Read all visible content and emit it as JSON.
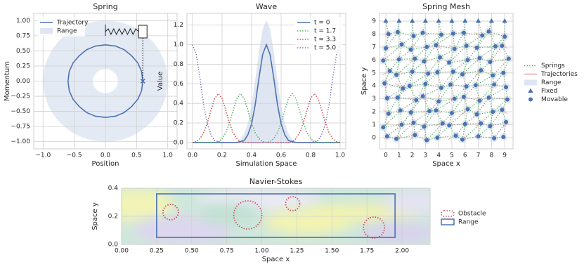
{
  "chart_data": [
    {
      "type": "line",
      "title": "Spring",
      "xlabel": "Position",
      "ylabel": "Momentum",
      "xlim": [
        -1.15,
        1.15
      ],
      "ylim": [
        -1.12,
        1.12
      ],
      "xticks": [
        {
          "value": -1,
          "label": "−1.0"
        },
        {
          "value": -0.5,
          "label": "−0.5"
        },
        {
          "value": 0,
          "label": "0.0"
        },
        {
          "value": 0.5,
          "label": "0.5"
        },
        {
          "value": 1,
          "label": "1.0"
        }
      ],
      "yticks": [
        {
          "value": -1,
          "label": "−1.00"
        },
        {
          "value": -0.75,
          "label": "−0.75"
        },
        {
          "value": -0.5,
          "label": "−0.50"
        },
        {
          "value": -0.25,
          "label": "−0.25"
        },
        {
          "value": 0,
          "label": "0.00"
        },
        {
          "value": 0.25,
          "label": "0.25"
        },
        {
          "value": 0.5,
          "label": "0.50"
        },
        {
          "value": 0.75,
          "label": "0.75"
        },
        {
          "value": 1,
          "label": "1.00"
        }
      ],
      "grid": true,
      "legend": "upper left",
      "series": [
        {
          "name": "Trajectory",
          "color": "#4c72b0",
          "x": [
            0.6,
            0.58,
            0.52,
            0.42,
            0.3,
            0.16,
            0,
            -0.16,
            -0.3,
            -0.42,
            -0.52,
            -0.58,
            -0.6,
            -0.58,
            -0.52,
            -0.42,
            -0.3,
            -0.16,
            0,
            0.16,
            0.3,
            0.42,
            0.52,
            0.58,
            0.6
          ],
          "values": [
            0,
            0.16,
            0.3,
            0.42,
            0.52,
            0.58,
            0.6,
            0.58,
            0.52,
            0.42,
            0.3,
            0.16,
            0,
            -0.16,
            -0.3,
            -0.42,
            -0.52,
            -0.58,
            -0.6,
            -0.58,
            -0.52,
            -0.42,
            -0.3,
            -0.16,
            0
          ]
        },
        {
          "name": "Range",
          "color": "#dfe6f2",
          "kind": "annulus",
          "inner": 0.2,
          "outer": 1.0
        }
      ]
    },
    {
      "type": "line",
      "title": "Wave",
      "xlabel": "Simulation Space",
      "ylabel": "Value",
      "xlim": [
        -0.038,
        1.038
      ],
      "ylim": [
        -0.065,
        1.32
      ],
      "xticks": [
        {
          "value": 0,
          "label": "0.0"
        },
        {
          "value": 0.2,
          "label": "0.2"
        },
        {
          "value": 0.4,
          "label": "0.4"
        },
        {
          "value": 0.6,
          "label": "0.6"
        },
        {
          "value": 0.8,
          "label": "0.8"
        },
        {
          "value": 1,
          "label": "1.0"
        }
      ],
      "yticks": [
        {
          "value": 0,
          "label": "0.0"
        },
        {
          "value": 0.2,
          "label": "0.2"
        },
        {
          "value": 0.4,
          "label": "0.4"
        },
        {
          "value": 0.6,
          "label": "0.6"
        },
        {
          "value": 0.8,
          "label": "0.8"
        },
        {
          "value": 1,
          "label": "1.0"
        },
        {
          "value": 1.2,
          "label": "1.2"
        }
      ],
      "grid": true,
      "legend": "upper right",
      "x": [
        0,
        0.025,
        0.05,
        0.075,
        0.1,
        0.125,
        0.15,
        0.175,
        0.2,
        0.225,
        0.25,
        0.275,
        0.3,
        0.325,
        0.35,
        0.375,
        0.4,
        0.425,
        0.45,
        0.475,
        0.5,
        0.525,
        0.55,
        0.575,
        0.6,
        0.625,
        0.65,
        0.675,
        0.7,
        0.725,
        0.75,
        0.775,
        0.8,
        0.825,
        0.85,
        0.875,
        0.9,
        0.925,
        0.95,
        0.975,
        1
      ],
      "band": {
        "color": "#dfe6f2",
        "values": [
          0,
          0,
          0,
          0,
          0,
          0,
          0,
          0,
          0,
          0,
          0,
          0,
          0.01,
          0.03,
          0.09,
          0.2,
          0.38,
          0.64,
          0.93,
          1.16,
          1.25,
          1.16,
          0.93,
          0.64,
          0.38,
          0.2,
          0.09,
          0.03,
          0.01,
          0,
          0,
          0,
          0,
          0,
          0,
          0,
          0,
          0,
          0,
          0,
          0
        ]
      },
      "series": [
        {
          "name": "t = 0",
          "color": "#4c72b0",
          "values": [
            0,
            0,
            0,
            0,
            0,
            0,
            0,
            0,
            0,
            0,
            0,
            0,
            0,
            0.01,
            0.02,
            0.08,
            0.19,
            0.39,
            0.66,
            0.9,
            1,
            0.9,
            0.66,
            0.39,
            0.19,
            0.08,
            0.02,
            0.01,
            0,
            0,
            0,
            0,
            0,
            0,
            0,
            0,
            0,
            0,
            0,
            0,
            0
          ]
        },
        {
          "name": "t = 1.7",
          "color": "#55a868",
          "dash": "dotted",
          "values": [
            0,
            0,
            0,
            0,
            0,
            0,
            0,
            0.01,
            0.04,
            0.1,
            0.2,
            0.33,
            0.45,
            0.5,
            0.45,
            0.33,
            0.2,
            0.1,
            0.04,
            0.01,
            0,
            0.01,
            0.04,
            0.1,
            0.2,
            0.33,
            0.45,
            0.5,
            0.45,
            0.33,
            0.2,
            0.1,
            0.04,
            0.01,
            0,
            0,
            0,
            0,
            0,
            0,
            0
          ]
        },
        {
          "name": "t = 3.3",
          "color": "#c44e52",
          "dash": "dotted",
          "values": [
            0,
            0.01,
            0.04,
            0.1,
            0.2,
            0.33,
            0.45,
            0.5,
            0.45,
            0.33,
            0.2,
            0.1,
            0.04,
            0.01,
            0,
            0,
            0,
            0,
            0,
            0,
            0,
            0,
            0,
            0,
            0,
            0,
            0,
            0.01,
            0.04,
            0.1,
            0.2,
            0.33,
            0.45,
            0.5,
            0.45,
            0.33,
            0.2,
            0.1,
            0.04,
            0.01,
            0
          ]
        },
        {
          "name": "t = 5.0",
          "color": "#8172b2",
          "dash": "dotted",
          "values": [
            1,
            0.9,
            0.66,
            0.39,
            0.19,
            0.08,
            0.02,
            0.01,
            0,
            0,
            0,
            0,
            0,
            0,
            0,
            0,
            0,
            0,
            0,
            0,
            0,
            0,
            0,
            0,
            0,
            0,
            0,
            0,
            0,
            0,
            0,
            0,
            0,
            0.01,
            0.02,
            0.08,
            0.19,
            0.39,
            0.66,
            0.9,
            1
          ]
        }
      ]
    },
    {
      "type": "scatter",
      "title": "Spring Mesh",
      "xlabel": "Space x",
      "ylabel": "Space y",
      "xlim": [
        -0.48,
        9.63
      ],
      "ylim": [
        -0.87,
        9.6
      ],
      "xticks": [
        0,
        1,
        2,
        3,
        4,
        5,
        6,
        7,
        8,
        9
      ],
      "yticks": [
        0,
        1,
        2,
        3,
        4,
        5,
        6,
        7,
        8,
        9
      ],
      "grid": true,
      "legend": "outside right",
      "series": [
        {
          "name": "Springs",
          "color": "#55a868",
          "kind": "springs",
          "dash": "dotted"
        },
        {
          "name": "Trajectories",
          "color": "#e8a3a8",
          "kind": "trajectories"
        },
        {
          "name": "Range",
          "color": "#dfe6f2",
          "kind": "range",
          "radius": 0.3
        },
        {
          "name": "Fixed",
          "color": "#4c72b0",
          "kind": "fixed",
          "x": [
            0,
            1,
            2,
            3,
            4,
            5,
            6,
            7,
            8,
            9
          ],
          "values": [
            9,
            9,
            9,
            9,
            9,
            9,
            9,
            9,
            9,
            9
          ]
        },
        {
          "name": "Movable",
          "color": "#4c72b0",
          "kind": "movable",
          "x": [
            0.1,
            0.8,
            2.2,
            3.1,
            3.9,
            5.3,
            5.8,
            7,
            8.2,
            8.9,
            -0.2,
            1.2,
            2.1,
            2.9,
            4.3,
            4.8,
            6,
            7.2,
            7.9,
            9.1,
            0.2,
            1.1,
            1.9,
            3.3,
            3.8,
            5,
            6.2,
            6.9,
            8.1,
            8.8,
            0.1,
            0.9,
            2.3,
            2.8,
            4,
            5.2,
            5.9,
            7.1,
            7.8,
            9.2,
            -0.1,
            1.3,
            1.8,
            3,
            4.2,
            4.9,
            6.1,
            6.8,
            8.2,
            9.1,
            0.3,
            0.8,
            2,
            3.2,
            3.9,
            5.1,
            5.8,
            7.2,
            8.1,
            8.9,
            -0.2,
            1,
            2.2,
            2.9,
            4.1,
            4.8,
            6.2,
            7.1,
            7.9,
            9.3,
            0,
            1.2,
            1.9,
            3.1,
            3.8,
            5.2,
            6.1,
            6.9,
            8.3,
            8.8,
            0.2,
            0.9,
            2.1,
            2.8,
            4.2,
            5.1,
            5.9,
            7.3,
            7.8,
            9
          ],
          "values": [
            0.1,
            -0.1,
            0.2,
            -0.2,
            0,
            0.15,
            -0.15,
            0.1,
            -0.05,
            0.05,
            0.8,
            1,
            1.15,
            0.85,
            1.1,
            0.95,
            1.05,
            1.1,
            0.9,
            1.2,
            1.85,
            2.1,
            1.95,
            2.05,
            2.1,
            1.9,
            2.2,
            1.8,
            2,
            2.15,
            3.05,
            3.1,
            2.9,
            3.2,
            2.8,
            3,
            3.15,
            2.85,
            3.1,
            2.95,
            4.2,
            3.8,
            4,
            4.15,
            3.85,
            4.1,
            3.95,
            4.05,
            4.1,
            3.9,
            5.15,
            4.85,
            5.1,
            4.95,
            5.05,
            5.1,
            4.9,
            5.2,
            4.8,
            5,
            5.95,
            6.05,
            6.1,
            5.9,
            6.2,
            5.8,
            6,
            6.15,
            5.85,
            6.1,
            6.9,
            7.2,
            6.8,
            7,
            7.15,
            6.85,
            7.1,
            6.95,
            7.05,
            7.1,
            8,
            8.15,
            7.85,
            8.1,
            7.95,
            8.05,
            8.1,
            7.9,
            8.2,
            7.8
          ]
        }
      ]
    },
    {
      "type": "flow",
      "title": "Navier-Stokes",
      "xlabel": "Space x",
      "ylabel": "Space y",
      "xlim": [
        0,
        2.2
      ],
      "ylim": [
        0,
        0.4
      ],
      "xticks": [
        {
          "value": 0,
          "label": "0.00"
        },
        {
          "value": 0.25,
          "label": "0.25"
        },
        {
          "value": 0.5,
          "label": "0.50"
        },
        {
          "value": 0.75,
          "label": "0.75"
        },
        {
          "value": 1,
          "label": "1.00"
        },
        {
          "value": 1.25,
          "label": "1.25"
        },
        {
          "value": 1.5,
          "label": "1.50"
        },
        {
          "value": 1.75,
          "label": "1.75"
        },
        {
          "value": 2,
          "label": "2.00"
        }
      ],
      "yticks": [
        {
          "value": 0,
          "label": "0.0"
        },
        {
          "value": 0.2,
          "label": "0.2"
        },
        {
          "value": 0.4,
          "label": "0.4"
        }
      ],
      "grid": true,
      "legend": "outside right",
      "series": [
        {
          "name": "Obstacle",
          "color": "#c44e52",
          "kind": "circles",
          "dash": "dotted",
          "x": [
            0.35,
            0.9,
            1.22,
            1.8
          ],
          "values": [
            0.23,
            0.21,
            0.29,
            0.12
          ],
          "radius": [
            0.055,
            0.1,
            0.05,
            0.075
          ]
        },
        {
          "name": "Range",
          "color": "#4c72b0",
          "kind": "rect",
          "x": [
            0.25,
            1.95
          ],
          "values": [
            0.05,
            0.36
          ]
        }
      ]
    }
  ]
}
